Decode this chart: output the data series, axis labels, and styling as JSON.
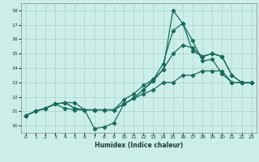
{
  "title": "",
  "xlabel": "Humidex (Indice chaleur)",
  "bg_color": "#cceee8",
  "grid_color": "#aad4ce",
  "line_color": "#1a6b5e",
  "xlim": [
    -0.5,
    23.5
  ],
  "ylim": [
    9.5,
    18.5
  ],
  "xticks": [
    0,
    1,
    2,
    3,
    4,
    5,
    6,
    7,
    8,
    9,
    10,
    11,
    12,
    13,
    14,
    15,
    16,
    17,
    18,
    19,
    20,
    21,
    22,
    23
  ],
  "yticks": [
    10,
    11,
    12,
    13,
    14,
    15,
    16,
    17,
    18
  ],
  "lines": [
    [
      10.7,
      11.0,
      11.2,
      11.5,
      11.6,
      11.2,
      11.1,
      9.8,
      9.9,
      10.2,
      11.5,
      11.9,
      12.5,
      13.1,
      13.9,
      18.0,
      17.1,
      15.9,
      14.5,
      14.6,
      13.6,
      13.0,
      13.0,
      13.0
    ],
    [
      10.7,
      11.0,
      11.2,
      11.5,
      11.6,
      11.6,
      11.1,
      11.1,
      11.1,
      11.1,
      11.5,
      11.9,
      12.5,
      13.2,
      14.3,
      16.6,
      17.1,
      15.2,
      14.8,
      15.0,
      14.8,
      13.5,
      13.0,
      13.0
    ],
    [
      10.7,
      11.0,
      11.2,
      11.5,
      11.6,
      11.2,
      11.1,
      11.1,
      11.1,
      11.1,
      11.8,
      12.2,
      12.8,
      13.2,
      13.9,
      15.0,
      15.6,
      15.4,
      14.8,
      15.0,
      14.8,
      13.5,
      13.0,
      13.0
    ],
    [
      10.7,
      11.0,
      11.2,
      11.5,
      11.2,
      11.1,
      11.1,
      11.1,
      11.1,
      11.1,
      11.5,
      11.9,
      12.2,
      12.5,
      13.0,
      13.0,
      13.5,
      13.5,
      13.8,
      13.8,
      13.8,
      13.0,
      13.0,
      13.0
    ]
  ]
}
